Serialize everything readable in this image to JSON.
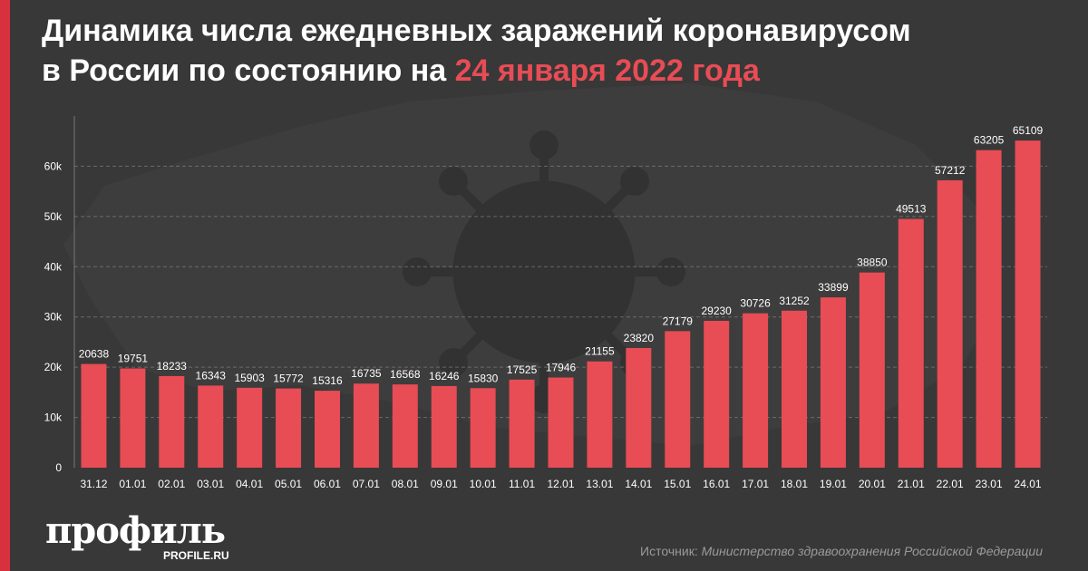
{
  "title": {
    "line1": "Динамика числа ежедневных заражений коронавирусом",
    "line2_prefix": "в России по состоянию на ",
    "line2_highlight": "24 января 2022 года"
  },
  "colors": {
    "background": "#383838",
    "bar": "#e84c55",
    "accent": "#e84c55",
    "stripe": "#d9303d",
    "text": "#ffffff",
    "muted": "#9a9a9a"
  },
  "chart_data": {
    "type": "bar",
    "categories": [
      "31.12",
      "01.01",
      "02.01",
      "03.01",
      "04.01",
      "05.01",
      "06.01",
      "07.01",
      "08.01",
      "09.01",
      "10.01",
      "11.01",
      "12.01",
      "13.01",
      "14.01",
      "15.01",
      "16.01",
      "17.01",
      "18.01",
      "19.01",
      "20.01",
      "21.01",
      "22.01",
      "23.01",
      "24.01"
    ],
    "values": [
      20638,
      19751,
      18233,
      16343,
      15903,
      15772,
      15316,
      16735,
      16568,
      16246,
      15830,
      17525,
      17946,
      21155,
      23820,
      27179,
      29230,
      30726,
      31252,
      33899,
      38850,
      49513,
      57212,
      63205,
      65109
    ],
    "ylim": [
      0,
      70000
    ],
    "yticks": [
      0,
      10000,
      20000,
      30000,
      40000,
      50000,
      60000
    ],
    "ytick_labels": [
      "0",
      "10k",
      "20k",
      "30k",
      "40k",
      "50k",
      "60k"
    ],
    "grid": true,
    "data_labels": true,
    "xlabel": "",
    "ylabel": ""
  },
  "logo": {
    "name": "профиль",
    "site": "PROFILE.RU"
  },
  "source": {
    "prefix": "Источник: ",
    "org": "Министерство здравоохранения Российской Федерации"
  },
  "background_image": "virus-over-russia-map"
}
